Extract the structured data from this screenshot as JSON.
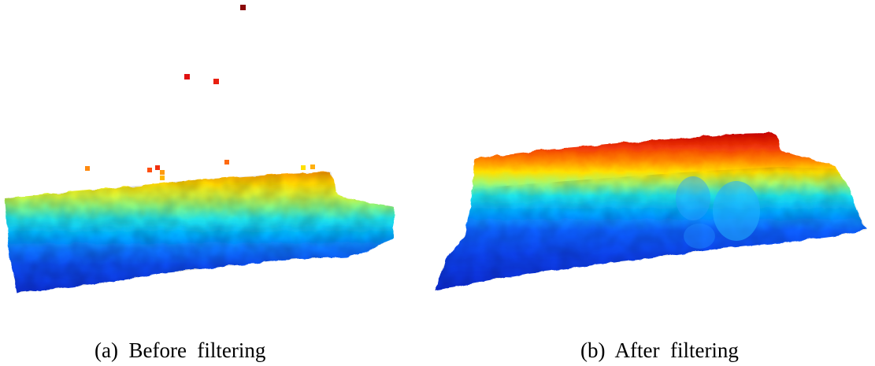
{
  "figure": {
    "panels": [
      {
        "id": "a",
        "caption": "(a)  Before  filtering",
        "point_cloud": "terrain-point-cloud-with-outliers"
      },
      {
        "id": "b",
        "caption": "(b)  After  filtering",
        "point_cloud": "terrain-point-cloud-filtered"
      }
    ],
    "colormap": [
      "#0a28e6",
      "#1e5cff",
      "#00a8ff",
      "#16e0ef",
      "#9cf86a",
      "#ffec00",
      "#ff9600",
      "#f2300a",
      "#c00000"
    ]
  }
}
